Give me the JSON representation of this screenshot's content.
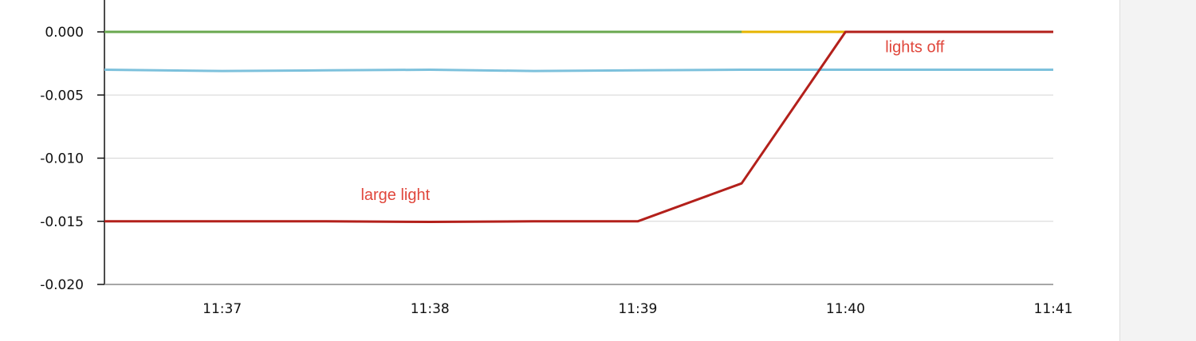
{
  "chart_data": {
    "type": "line",
    "title": "",
    "xlabel": "",
    "ylabel": "",
    "ylim": [
      -0.02,
      0.0
    ],
    "y_ticks": [
      "0.000",
      "-0.005",
      "-0.010",
      "-0.015",
      "-0.020"
    ],
    "x_ticks": [
      "11:37",
      "11:38",
      "11:39",
      "11:40",
      "11:41"
    ],
    "xlim": [
      "11:36:26",
      "11:41:00"
    ],
    "grid": true,
    "legend": "none",
    "series": [
      {
        "color": "#e6b400",
        "x": [
          "11:36:26",
          "11:41:00"
        ],
        "values": [
          0.0,
          0.0
        ]
      },
      {
        "color": "#6aa84f",
        "x": [
          "11:36:26",
          "11:39:30"
        ],
        "values": [
          0.0,
          0.0
        ]
      },
      {
        "color": "#7dc1dc",
        "x": [
          "11:36:26",
          "11:37:00",
          "11:37:30",
          "11:38:00",
          "11:38:30",
          "11:39:00",
          "11:39:30",
          "11:40:00",
          "11:40:30",
          "11:41:00"
        ],
        "values": [
          -0.003,
          -0.0031,
          -0.00305,
          -0.003,
          -0.0031,
          -0.00305,
          -0.003,
          -0.003,
          -0.003,
          -0.003
        ]
      },
      {
        "color": "#b3201b",
        "x": [
          "11:36:26",
          "11:37:00",
          "11:37:30",
          "11:38:00",
          "11:38:30",
          "11:39:00",
          "11:39:30",
          "11:40:00",
          "11:40:30",
          "11:41:00"
        ],
        "values": [
          -0.015,
          -0.015,
          -0.015,
          -0.01505,
          -0.015,
          -0.015,
          -0.012,
          0.0,
          0.0,
          0.0
        ]
      }
    ],
    "annotations": [
      {
        "text": "large light",
        "x": "11:37:50",
        "y": -0.0133,
        "color": "#e0473c"
      },
      {
        "text": "lights off",
        "x": "11:40:20",
        "y": -0.0016,
        "color": "#e0473c"
      }
    ]
  }
}
